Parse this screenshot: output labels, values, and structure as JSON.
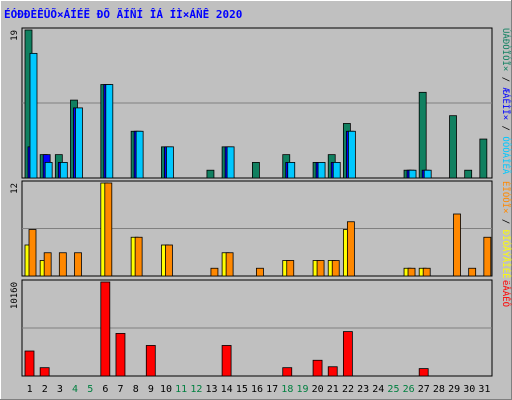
{
  "title": "ÉÓÐÐÈÊÛÕ×ÁÍÉË ÐÕ ÄÍÑÍ ÎÁ ÍÌ×ÁÑÊ 2020",
  "colors": {
    "background": "#c0c0c0",
    "border": "#000000",
    "title": "#0000ff",
    "hits": "#108060",
    "files": "#00c8ff",
    "pages": "#00ffff",
    "visits": "#ffff00",
    "sites": "#ff8800",
    "kbytes": "#ff0000",
    "axis_dark": "#000000",
    "weekend": "#008040"
  },
  "chart_data": [
    {
      "type": "bar",
      "panel": "hits-files-pages",
      "ymax_label": "19",
      "ylim": [
        0,
        19
      ],
      "legend": [
        {
          "text": "ÚÁÐÒÏÓÏ×",
          "color": "#108060"
        },
        {
          "text": " / ",
          "color": "#000000"
        },
        {
          "text": "ÆÁÊÌÏ×",
          "color": "#0000ff"
        },
        {
          "text": " / ",
          "color": "#000000"
        },
        {
          "text": "ÓÔÒÁÎÉÃ",
          "color": "#00c8ff"
        }
      ],
      "categories": [
        "1",
        "2",
        "3",
        "4",
        "5",
        "6",
        "7",
        "8",
        "9",
        "10",
        "11",
        "12",
        "13",
        "14",
        "15",
        "16",
        "17",
        "18",
        "19",
        "20",
        "21",
        "22",
        "23",
        "24",
        "25",
        "26",
        "27",
        "28",
        "29",
        "30",
        "31"
      ],
      "series": [
        {
          "key": "hits",
          "values": [
            19,
            3,
            3,
            10,
            0,
            12,
            0,
            6,
            0,
            4,
            0,
            0,
            1,
            4,
            0,
            2,
            0,
            3,
            0,
            2,
            3,
            7,
            0,
            0,
            0,
            1,
            11,
            0,
            8,
            1,
            5
          ]
        },
        {
          "key": "files",
          "values": [
            4,
            3,
            2,
            9,
            0,
            12,
            0,
            6,
            0,
            4,
            0,
            0,
            0,
            4,
            0,
            0,
            0,
            2,
            0,
            2,
            2,
            6,
            0,
            0,
            0,
            1,
            1,
            0,
            0,
            0,
            0
          ]
        },
        {
          "key": "pages",
          "values": [
            16,
            2,
            2,
            9,
            0,
            12,
            0,
            6,
            0,
            4,
            0,
            0,
            0,
            4,
            0,
            0,
            0,
            2,
            0,
            2,
            2,
            6,
            0,
            0,
            0,
            1,
            1,
            0,
            0,
            0,
            0
          ]
        }
      ]
    },
    {
      "type": "bar",
      "panel": "visits-sites",
      "ymax_label": "12",
      "ylim": [
        0,
        12
      ],
      "legend": [
        {
          "text": "ÈÏÓÔÏ×",
          "color": "#ff8800"
        },
        {
          "text": " / ",
          "color": "#000000"
        },
        {
          "text": "ÐÏÓÅÝÅÎÉÊ",
          "color": "#ffff00"
        }
      ],
      "categories": [
        "1",
        "2",
        "3",
        "4",
        "5",
        "6",
        "7",
        "8",
        "9",
        "10",
        "11",
        "12",
        "13",
        "14",
        "15",
        "16",
        "17",
        "18",
        "19",
        "20",
        "21",
        "22",
        "23",
        "24",
        "25",
        "26",
        "27",
        "28",
        "29",
        "30",
        "31"
      ],
      "series": [
        {
          "key": "visits",
          "values": [
            4,
            2,
            0,
            0,
            0,
            12,
            0,
            5,
            0,
            4,
            0,
            0,
            0,
            3,
            0,
            0,
            0,
            2,
            0,
            2,
            2,
            6,
            0,
            0,
            0,
            1,
            1,
            0,
            0,
            0,
            0
          ]
        },
        {
          "key": "sites",
          "values": [
            6,
            3,
            3,
            3,
            0,
            12,
            0,
            5,
            0,
            4,
            0,
            0,
            1,
            3,
            0,
            1,
            0,
            2,
            0,
            2,
            2,
            7,
            0,
            0,
            0,
            1,
            1,
            0,
            8,
            1,
            5
          ]
        }
      ]
    },
    {
      "type": "bar",
      "panel": "kbytes",
      "ymax_label": "10160",
      "ylim": [
        0,
        10160
      ],
      "legend": [
        {
          "text": "ëÂÁÊÔ",
          "color": "#ff0000"
        }
      ],
      "categories": [
        "1",
        "2",
        "3",
        "4",
        "5",
        "6",
        "7",
        "8",
        "9",
        "10",
        "11",
        "12",
        "13",
        "14",
        "15",
        "16",
        "17",
        "18",
        "19",
        "20",
        "21",
        "22",
        "23",
        "24",
        "25",
        "26",
        "27",
        "28",
        "29",
        "30",
        "31"
      ],
      "series": [
        {
          "key": "kbytes",
          "values": [
            2700,
            900,
            0,
            0,
            0,
            10160,
            4600,
            0,
            3300,
            0,
            0,
            0,
            0,
            3300,
            0,
            0,
            0,
            900,
            0,
            1700,
            1000,
            4800,
            0,
            0,
            0,
            0,
            800,
            0,
            0,
            0,
            0
          ]
        }
      ]
    }
  ],
  "x_axis": {
    "labels": [
      "1",
      "2",
      "3",
      "4",
      "5",
      "6",
      "7",
      "8",
      "9",
      "10",
      "11",
      "12",
      "13",
      "14",
      "15",
      "16",
      "17",
      "18",
      "19",
      "20",
      "21",
      "22",
      "23",
      "24",
      "25",
      "26",
      "27",
      "28",
      "29",
      "30",
      "31"
    ],
    "weekend": [
      "4",
      "5",
      "11",
      "12",
      "18",
      "19",
      "25",
      "26"
    ]
  }
}
